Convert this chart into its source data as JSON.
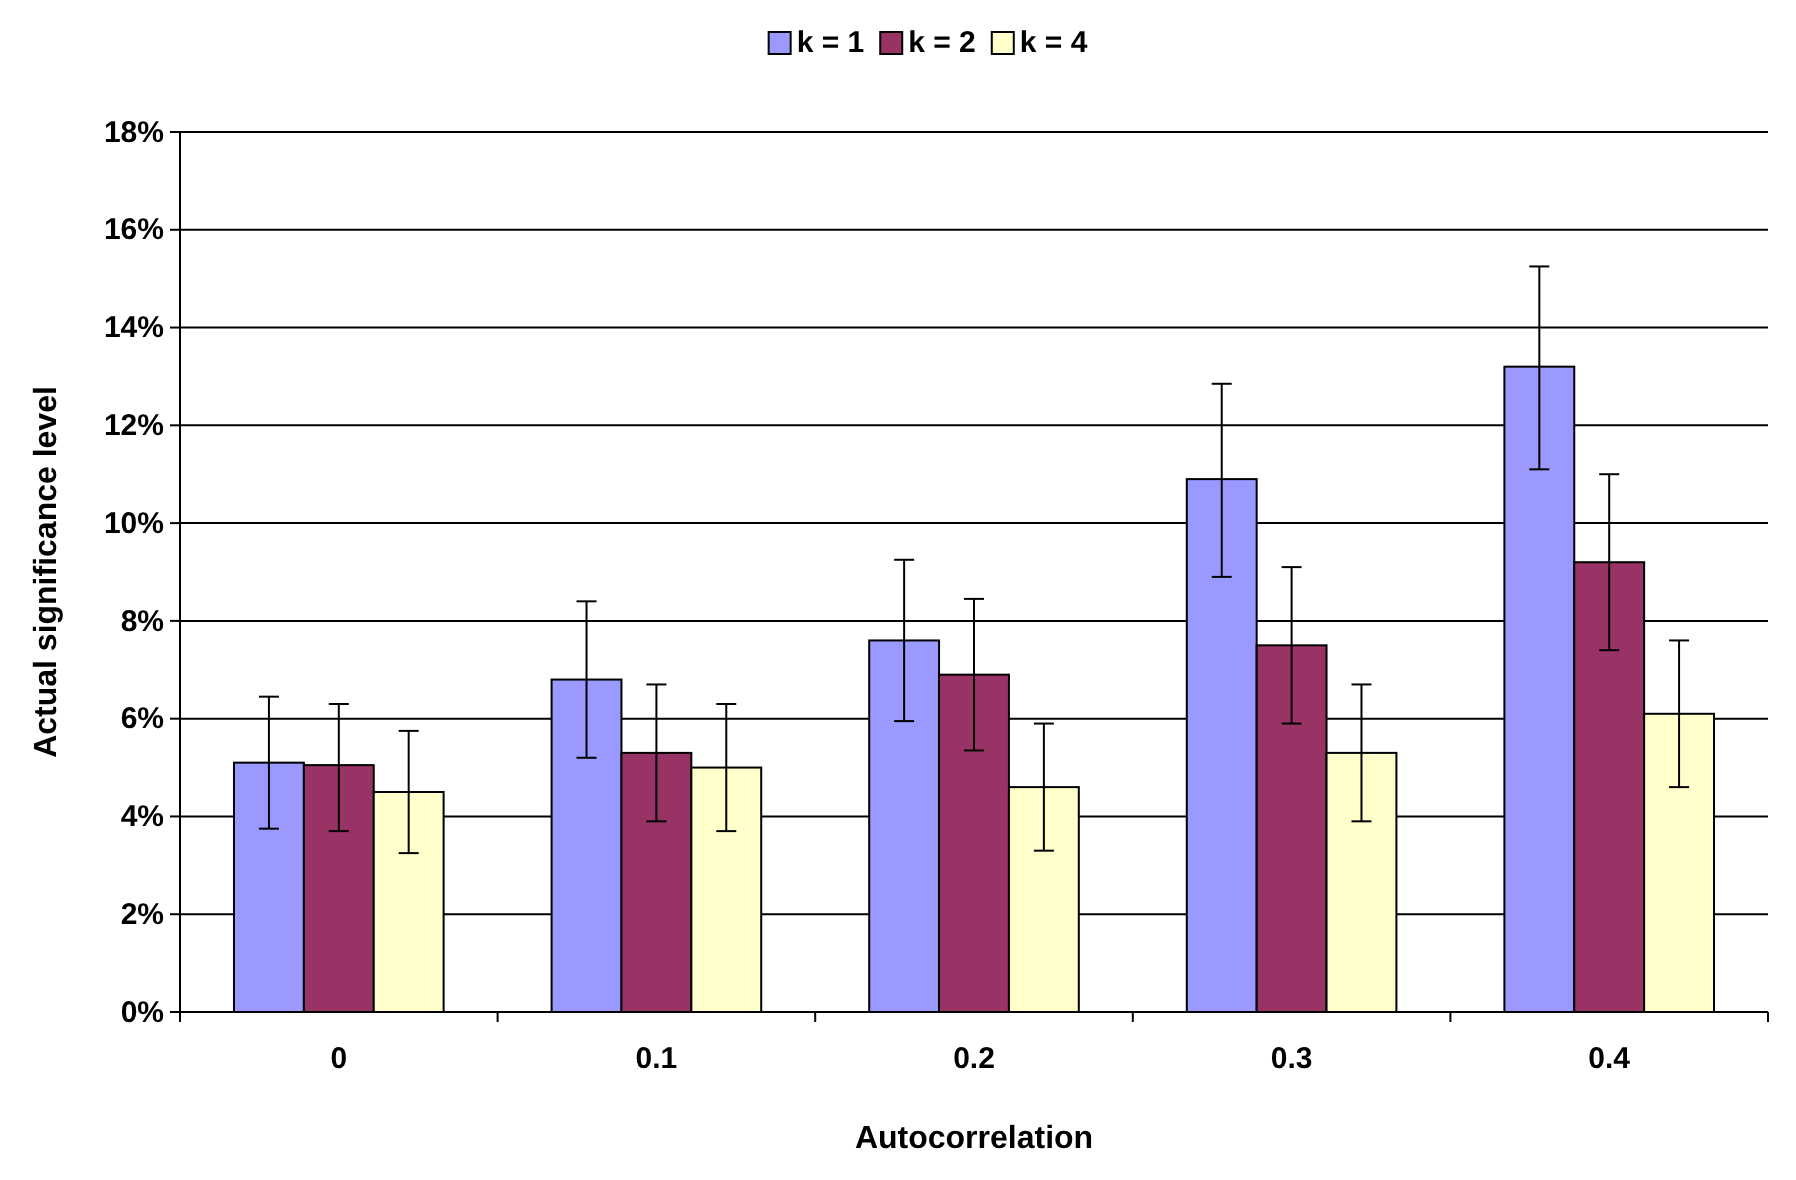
{
  "chart_data": {
    "type": "bar",
    "xlabel": "Autocorrelation",
    "ylabel": "Actual significance level",
    "categories": [
      "0",
      "0.1",
      "0.2",
      "0.3",
      "0.4"
    ],
    "series": [
      {
        "name": "k = 1",
        "color": "#9999ff",
        "values": [
          5.1,
          6.8,
          7.6,
          10.9,
          13.2
        ],
        "errors": [
          [
            3.75,
            6.45
          ],
          [
            5.2,
            8.4
          ],
          [
            5.95,
            9.25
          ],
          [
            8.9,
            12.85
          ],
          [
            11.1,
            15.25
          ]
        ]
      },
      {
        "name": "k = 2",
        "color": "#993366",
        "values": [
          5.05,
          5.3,
          6.9,
          7.5,
          9.2
        ],
        "errors": [
          [
            3.7,
            6.3
          ],
          [
            3.9,
            6.7
          ],
          [
            5.35,
            8.45
          ],
          [
            5.9,
            9.1
          ],
          [
            7.4,
            11.0
          ]
        ]
      },
      {
        "name": "k = 4",
        "color": "#ffffcc",
        "values": [
          4.5,
          5.0,
          4.6,
          5.3,
          6.1
        ],
        "errors": [
          [
            3.25,
            5.75
          ],
          [
            3.7,
            6.3
          ],
          [
            3.3,
            5.9
          ],
          [
            3.9,
            6.7
          ],
          [
            4.6,
            7.6
          ]
        ]
      }
    ],
    "ylim": [
      0,
      18
    ],
    "yticks": [
      {
        "value": 0,
        "label": "0%"
      },
      {
        "value": 2,
        "label": "2%"
      },
      {
        "value": 4,
        "label": "4%"
      },
      {
        "value": 6,
        "label": "6%"
      },
      {
        "value": 8,
        "label": "8%"
      },
      {
        "value": 10,
        "label": "10%"
      },
      {
        "value": 12,
        "label": "12%"
      },
      {
        "value": 14,
        "label": "14%"
      },
      {
        "value": 16,
        "label": "16%"
      },
      {
        "value": 18,
        "label": "18%"
      }
    ],
    "grid": "y",
    "legend": "top"
  }
}
